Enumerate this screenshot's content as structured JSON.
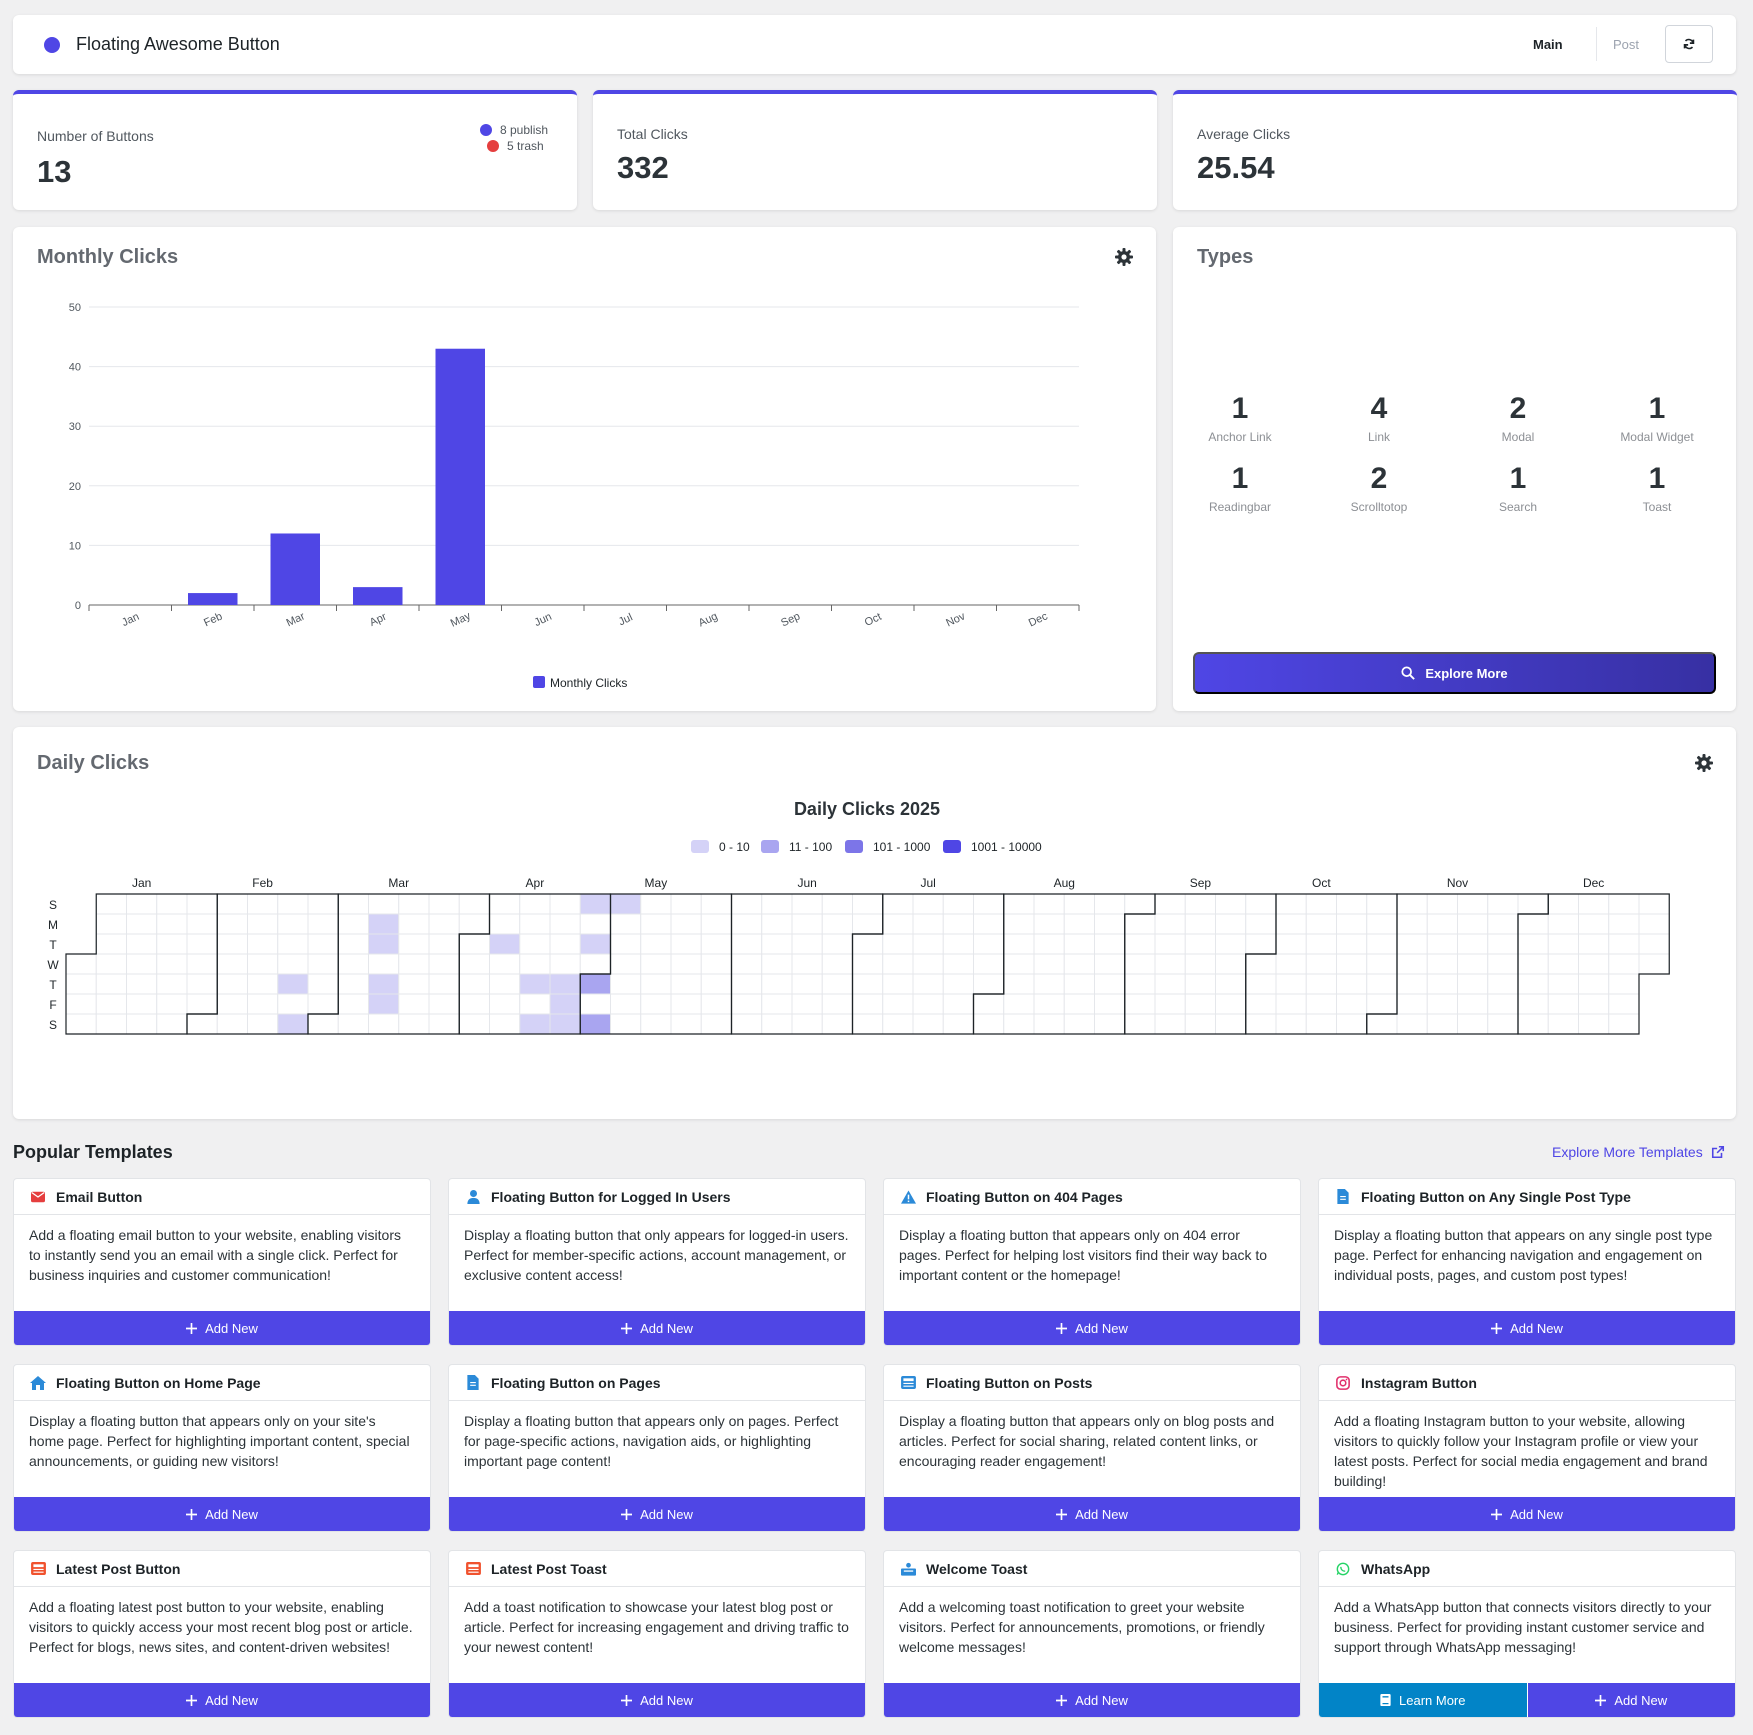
{
  "header": {
    "title": "Floating Awesome Button",
    "nav_main": "Main",
    "nav_post": "Post"
  },
  "stats": {
    "buttons": {
      "label": "Number of Buttons",
      "value": "13",
      "publish": "8 publish",
      "trash": "5 trash"
    },
    "total": {
      "label": "Total Clicks",
      "value": "332"
    },
    "average": {
      "label": "Average Clicks",
      "value": "25.54"
    }
  },
  "monthly": {
    "title": "Monthly Clicks"
  },
  "chart_data": {
    "type": "bar",
    "categories": [
      "Jan",
      "Feb",
      "Mar",
      "Apr",
      "May",
      "Jun",
      "Jul",
      "Aug",
      "Sep",
      "Oct",
      "Nov",
      "Dec"
    ],
    "series": [
      {
        "name": "Monthly Clicks",
        "values": [
          0,
          2,
          12,
          3,
          43,
          0,
          0,
          0,
          0,
          0,
          0,
          0
        ],
        "color": "#4f46e5"
      }
    ],
    "ylim": [
      0,
      50
    ],
    "yticks": [
      0,
      10,
      20,
      30,
      40,
      50
    ],
    "grid": true,
    "legend": "bottom"
  },
  "types": {
    "title": "Types",
    "items": [
      {
        "count": "1",
        "label": "Anchor Link"
      },
      {
        "count": "4",
        "label": "Link"
      },
      {
        "count": "2",
        "label": "Modal"
      },
      {
        "count": "1",
        "label": "Modal Widget"
      },
      {
        "count": "1",
        "label": "Readingbar"
      },
      {
        "count": "2",
        "label": "Scrolltotop"
      },
      {
        "count": "1",
        "label": "Search"
      },
      {
        "count": "1",
        "label": "Toast"
      }
    ],
    "explore": "Explore More"
  },
  "daily": {
    "title": "Daily Clicks",
    "heatmap_title": "Daily Clicks 2025",
    "legend": [
      {
        "label": "0 - 10",
        "color": "#d4d2f7"
      },
      {
        "label": "11 - 100",
        "color": "#a9a5f0"
      },
      {
        "label": "101 - 1000",
        "color": "#7c75e8"
      },
      {
        "label": "1001 - 10000",
        "color": "#4f46e5"
      }
    ],
    "months": [
      "Jan",
      "Feb",
      "Mar",
      "Apr",
      "May",
      "Jun",
      "Jul",
      "Aug",
      "Sep",
      "Oct",
      "Nov",
      "Dec"
    ],
    "days": [
      "S",
      "M",
      "T",
      "W",
      "T",
      "F",
      "S"
    ],
    "year": 2025,
    "active_days": [
      {
        "date": "2025-02-20",
        "level": 1
      },
      {
        "date": "2025-02-22",
        "level": 1
      },
      {
        "date": "2025-03-10",
        "level": 1
      },
      {
        "date": "2025-03-11",
        "level": 1
      },
      {
        "date": "2025-03-13",
        "level": 1
      },
      {
        "date": "2025-03-14",
        "level": 1
      },
      {
        "date": "2025-04-08",
        "level": 1
      },
      {
        "date": "2025-04-17",
        "level": 1
      },
      {
        "date": "2025-04-19",
        "level": 1
      },
      {
        "date": "2025-04-24",
        "level": 1
      },
      {
        "date": "2025-04-25",
        "level": 1
      },
      {
        "date": "2025-04-26",
        "level": 1
      },
      {
        "date": "2025-04-27",
        "level": 1
      },
      {
        "date": "2025-04-29",
        "level": 1
      },
      {
        "date": "2025-05-01",
        "level": 2
      },
      {
        "date": "2025-05-03",
        "level": 2
      },
      {
        "date": "2025-05-04",
        "level": 1
      }
    ]
  },
  "templates": {
    "title": "Popular Templates",
    "explore_link": "Explore More Templates",
    "add_label": "Add New",
    "learn_label": "Learn More",
    "items": [
      {
        "icon": "envelope-icon",
        "icon_color": "#e53e3e",
        "name": "Email Button",
        "desc": "Add a floating email button to your website, enabling visitors to instantly send you an email with a single click. Perfect for business inquiries and customer communication!"
      },
      {
        "icon": "user-icon",
        "icon_color": "#2b8ad8",
        "name": "Floating Button for Logged In Users",
        "desc": "Display a floating button that only appears for logged-in users. Perfect for member-specific actions, account management, or exclusive content access!"
      },
      {
        "icon": "warning-icon",
        "icon_color": "#2b8ad8",
        "name": "Floating Button on 404 Pages",
        "desc": "Display a floating button that appears only on 404 error pages. Perfect for helping lost visitors find their way back to important content or the homepage!"
      },
      {
        "icon": "file-icon",
        "icon_color": "#2b8ad8",
        "name": "Floating Button on Any Single Post Type",
        "desc": "Display a floating button that appears on any single post type page. Perfect for enhancing navigation and engagement on individual posts, pages, and custom post types!"
      },
      {
        "icon": "home-icon",
        "icon_color": "#2b8ad8",
        "name": "Floating Button on Home Page",
        "desc": "Display a floating button that appears only on your site's home page. Perfect for highlighting important content, special announcements, or guiding new visitors!"
      },
      {
        "icon": "file-icon",
        "icon_color": "#2b8ad8",
        "name": "Floating Button on Pages",
        "desc": "Display a floating button that appears only on pages. Perfect for page-specific actions, navigation aids, or highlighting important page content!"
      },
      {
        "icon": "newspaper-icon",
        "icon_color": "#2b8ad8",
        "name": "Floating Button on Posts",
        "desc": "Display a floating button that appears only on blog posts and articles. Perfect for social sharing, related content links, or encouraging reader engagement!"
      },
      {
        "icon": "instagram-icon",
        "icon_color": "#e1306c",
        "name": "Instagram Button",
        "desc": "Add a floating Instagram button to your website, allowing visitors to quickly follow your Instagram profile or view your latest posts. Perfect for social media engagement and brand building!"
      },
      {
        "icon": "newspaper-icon",
        "icon_color": "#f0522e",
        "name": "Latest Post Button",
        "desc": "Add a floating latest post button to your website, enabling visitors to quickly access your most recent blog post or article. Perfect for blogs, news sites, and content-driven websites!"
      },
      {
        "icon": "newspaper-icon",
        "icon_color": "#f0522e",
        "name": "Latest Post Toast",
        "desc": "Add a toast notification to showcase your latest blog post or article. Perfect for increasing engagement and driving traffic to your newest content!"
      },
      {
        "icon": "people-icon",
        "icon_color": "#2b8ad8",
        "name": "Welcome Toast",
        "desc": "Add a welcoming toast notification to greet your website visitors. Perfect for announcements, promotions, or friendly welcome messages!"
      },
      {
        "icon": "whatsapp-icon",
        "icon_color": "#25d366",
        "name": "WhatsApp",
        "desc": "Add a WhatsApp button that connects visitors directly to your business. Perfect for providing instant customer service and support through WhatsApp messaging!",
        "learn": true
      }
    ]
  }
}
